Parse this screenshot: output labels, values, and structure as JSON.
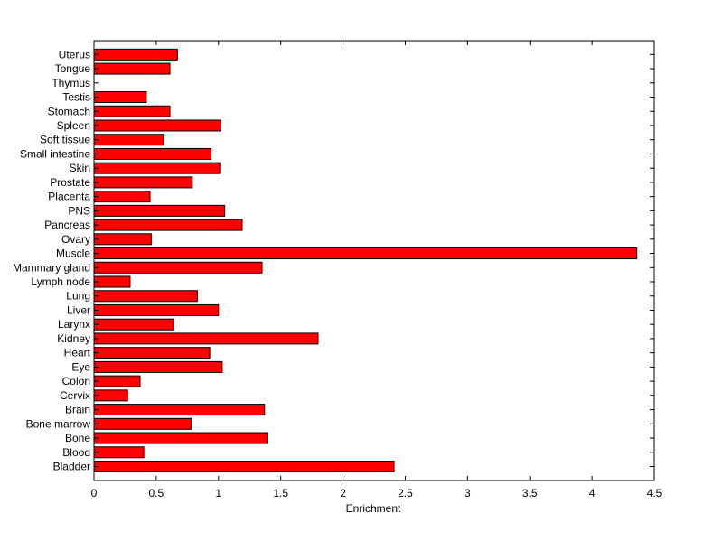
{
  "chart_data": {
    "type": "bar",
    "orientation": "horizontal",
    "categories": [
      "Bladder",
      "Blood",
      "Bone",
      "Bone marrow",
      "Brain",
      "Cervix",
      "Colon",
      "Eye",
      "Heart",
      "Kidney",
      "Larynx",
      "Liver",
      "Lung",
      "Lymph node",
      "Mammary gland",
      "Muscle",
      "Ovary",
      "Pancreas",
      "PNS",
      "Placenta",
      "Prostate",
      "Skin",
      "Small intestine",
      "Soft tissue",
      "Spleen",
      "Stomach",
      "Testis",
      "Thymus",
      "Tongue",
      "Uterus"
    ],
    "values": [
      2.41,
      0.4,
      1.39,
      0.78,
      1.37,
      0.27,
      0.37,
      1.03,
      0.93,
      1.8,
      0.64,
      1.0,
      0.83,
      0.29,
      1.35,
      4.36,
      0.46,
      1.19,
      1.05,
      0.45,
      0.79,
      1.01,
      0.94,
      0.56,
      1.02,
      0.61,
      0.42,
      0.0,
      0.61,
      0.67
    ],
    "xlabel": "Enrichment",
    "ylabel": "",
    "title": "",
    "xlim": [
      0,
      4.5
    ],
    "xticks": [
      "0",
      "0.5",
      "1",
      "1.5",
      "2",
      "2.5",
      "3",
      "3.5",
      "4",
      "4.5"
    ],
    "bar_color": "#ff0000",
    "edge_color": "#000000",
    "grid": false
  }
}
